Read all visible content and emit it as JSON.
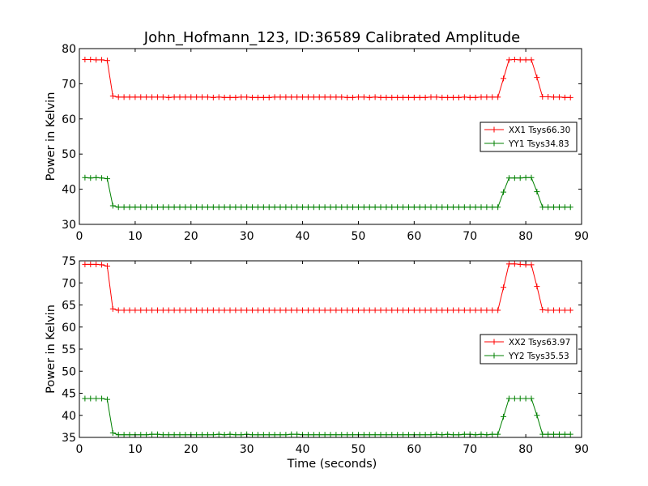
{
  "figure": {
    "title": "John_Hofmann_123, ID:36589 Calibrated Amplitude",
    "xlabel": "Time (seconds)"
  },
  "colors": {
    "xx": "#ff0000",
    "yy": "#008000"
  },
  "chart_data": [
    {
      "type": "line",
      "ylabel": "Power in Kelvin",
      "xlim": [
        0,
        90
      ],
      "ylim": [
        30,
        80
      ],
      "xticks": [
        0,
        10,
        20,
        30,
        40,
        50,
        60,
        70,
        80,
        90
      ],
      "yticks": [
        30,
        40,
        50,
        60,
        70,
        80
      ],
      "legend_placement": "center-right",
      "x": [
        1,
        2,
        3,
        4,
        5,
        6,
        7,
        8,
        9,
        10,
        11,
        12,
        13,
        14,
        15,
        16,
        17,
        18,
        19,
        20,
        21,
        22,
        23,
        24,
        25,
        26,
        27,
        28,
        29,
        30,
        31,
        32,
        33,
        34,
        35,
        36,
        37,
        38,
        39,
        40,
        41,
        42,
        43,
        44,
        45,
        46,
        47,
        48,
        49,
        50,
        51,
        52,
        53,
        54,
        55,
        56,
        57,
        58,
        59,
        60,
        61,
        62,
        63,
        64,
        65,
        66,
        67,
        68,
        69,
        70,
        71,
        72,
        73,
        74,
        75,
        76,
        77,
        78,
        79,
        80,
        81,
        82,
        83,
        84,
        85,
        86,
        87,
        88
      ],
      "series": [
        {
          "name": "XX1 Tsys66.30",
          "color": "#ff0000",
          "values": [
            76.9,
            76.9,
            76.8,
            76.8,
            76.6,
            66.5,
            66.2,
            66.2,
            66.2,
            66.2,
            66.2,
            66.2,
            66.2,
            66.2,
            66.2,
            66.1,
            66.2,
            66.2,
            66.2,
            66.2,
            66.2,
            66.2,
            66.2,
            66.1,
            66.2,
            66.1,
            66.1,
            66.1,
            66.2,
            66.2,
            66.1,
            66.1,
            66.1,
            66.1,
            66.2,
            66.2,
            66.2,
            66.2,
            66.2,
            66.2,
            66.2,
            66.2,
            66.2,
            66.2,
            66.2,
            66.2,
            66.2,
            66.1,
            66.1,
            66.2,
            66.2,
            66.1,
            66.2,
            66.1,
            66.1,
            66.1,
            66.1,
            66.1,
            66.1,
            66.1,
            66.1,
            66.1,
            66.2,
            66.2,
            66.1,
            66.1,
            66.1,
            66.1,
            66.2,
            66.1,
            66.1,
            66.2,
            66.2,
            66.2,
            66.2,
            71.5,
            76.8,
            76.9,
            76.8,
            76.8,
            76.8,
            71.8,
            66.3,
            66.3,
            66.2,
            66.2,
            66.1,
            66.1
          ]
        },
        {
          "name": "YY1 Tsys34.83",
          "color": "#008000",
          "values": [
            43.3,
            43.2,
            43.3,
            43.2,
            43.0,
            35.3,
            34.9,
            34.9,
            34.9,
            34.9,
            34.9,
            34.9,
            34.9,
            34.9,
            34.9,
            34.9,
            34.9,
            34.9,
            34.9,
            34.9,
            34.9,
            34.9,
            34.9,
            34.9,
            34.9,
            34.9,
            34.9,
            34.9,
            34.9,
            34.9,
            34.9,
            34.9,
            34.9,
            34.9,
            34.9,
            34.9,
            34.9,
            34.9,
            34.9,
            34.9,
            34.9,
            34.9,
            34.9,
            34.9,
            34.9,
            34.9,
            34.9,
            34.9,
            34.9,
            34.9,
            34.9,
            34.9,
            34.9,
            34.9,
            34.9,
            34.9,
            34.9,
            34.9,
            34.9,
            34.9,
            34.9,
            34.9,
            34.9,
            34.9,
            34.9,
            34.9,
            34.9,
            34.9,
            34.9,
            34.9,
            34.9,
            34.9,
            34.9,
            34.9,
            34.9,
            39.2,
            43.2,
            43.2,
            43.2,
            43.3,
            43.3,
            39.3,
            34.9,
            34.9,
            34.9,
            34.9,
            34.9,
            34.9
          ]
        }
      ]
    },
    {
      "type": "line",
      "ylabel": "Power in Kelvin",
      "xlim": [
        0,
        90
      ],
      "ylim": [
        35,
        75
      ],
      "xticks": [
        0,
        10,
        20,
        30,
        40,
        50,
        60,
        70,
        80,
        90
      ],
      "yticks": [
        35,
        40,
        45,
        50,
        55,
        60,
        65,
        70,
        75
      ],
      "legend_placement": "center-right",
      "x": [
        1,
        2,
        3,
        4,
        5,
        6,
        7,
        8,
        9,
        10,
        11,
        12,
        13,
        14,
        15,
        16,
        17,
        18,
        19,
        20,
        21,
        22,
        23,
        24,
        25,
        26,
        27,
        28,
        29,
        30,
        31,
        32,
        33,
        34,
        35,
        36,
        37,
        38,
        39,
        40,
        41,
        42,
        43,
        44,
        45,
        46,
        47,
        48,
        49,
        50,
        51,
        52,
        53,
        54,
        55,
        56,
        57,
        58,
        59,
        60,
        61,
        62,
        63,
        64,
        65,
        66,
        67,
        68,
        69,
        70,
        71,
        72,
        73,
        74,
        75,
        76,
        77,
        78,
        79,
        80,
        81,
        82,
        83,
        84,
        85,
        86,
        87,
        88
      ],
      "series": [
        {
          "name": "XX2 Tsys63.97",
          "color": "#ff0000",
          "values": [
            74.2,
            74.2,
            74.2,
            74.1,
            73.8,
            64.1,
            63.8,
            63.8,
            63.8,
            63.8,
            63.8,
            63.8,
            63.8,
            63.8,
            63.8,
            63.8,
            63.8,
            63.8,
            63.8,
            63.8,
            63.8,
            63.8,
            63.8,
            63.8,
            63.8,
            63.8,
            63.8,
            63.8,
            63.8,
            63.8,
            63.8,
            63.8,
            63.8,
            63.8,
            63.8,
            63.8,
            63.8,
            63.8,
            63.8,
            63.8,
            63.8,
            63.8,
            63.8,
            63.8,
            63.8,
            63.8,
            63.8,
            63.8,
            63.8,
            63.8,
            63.8,
            63.8,
            63.8,
            63.8,
            63.8,
            63.8,
            63.8,
            63.8,
            63.8,
            63.8,
            63.8,
            63.8,
            63.8,
            63.8,
            63.8,
            63.8,
            63.8,
            63.8,
            63.8,
            63.8,
            63.8,
            63.8,
            63.8,
            63.8,
            63.8,
            69.0,
            74.3,
            74.3,
            74.2,
            74.1,
            74.1,
            69.2,
            63.9,
            63.8,
            63.8,
            63.8,
            63.8,
            63.8
          ]
        },
        {
          "name": "YY2 Tsys35.53",
          "color": "#008000",
          "values": [
            43.8,
            43.8,
            43.8,
            43.8,
            43.6,
            36.0,
            35.6,
            35.6,
            35.6,
            35.6,
            35.6,
            35.6,
            35.7,
            35.7,
            35.6,
            35.6,
            35.6,
            35.6,
            35.6,
            35.6,
            35.6,
            35.6,
            35.6,
            35.6,
            35.7,
            35.6,
            35.7,
            35.6,
            35.6,
            35.7,
            35.6,
            35.6,
            35.6,
            35.6,
            35.6,
            35.6,
            35.6,
            35.7,
            35.7,
            35.6,
            35.6,
            35.6,
            35.6,
            35.6,
            35.6,
            35.6,
            35.6,
            35.6,
            35.6,
            35.6,
            35.6,
            35.6,
            35.6,
            35.6,
            35.6,
            35.6,
            35.6,
            35.6,
            35.6,
            35.6,
            35.6,
            35.6,
            35.6,
            35.7,
            35.6,
            35.7,
            35.6,
            35.6,
            35.7,
            35.7,
            35.6,
            35.7,
            35.6,
            35.7,
            35.7,
            39.7,
            43.8,
            43.8,
            43.8,
            43.8,
            43.8,
            40.0,
            35.7,
            35.7,
            35.7,
            35.7,
            35.7,
            35.7
          ]
        }
      ]
    }
  ]
}
